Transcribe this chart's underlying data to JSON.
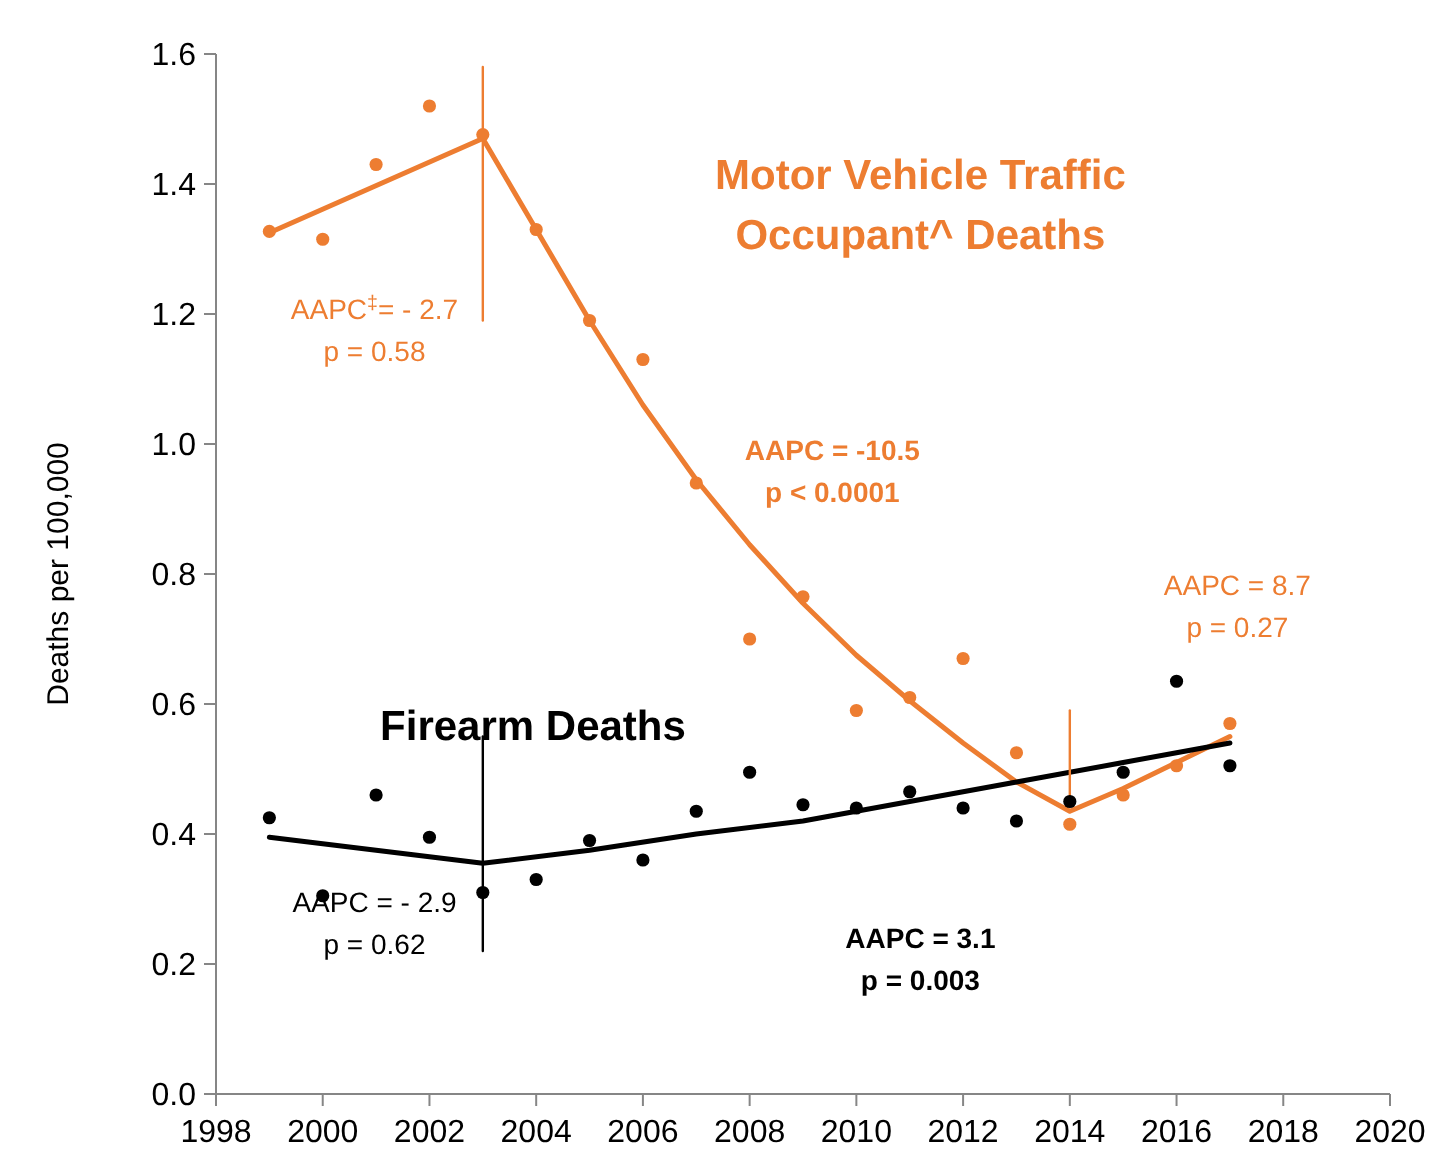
{
  "chart_data": {
    "type": "scatter",
    "ylabel": "Deaths per 100,000",
    "xlim": [
      1998,
      2020
    ],
    "xticks": [
      1998,
      2000,
      2002,
      2004,
      2006,
      2008,
      2010,
      2012,
      2014,
      2016,
      2018,
      2020
    ],
    "ylim": [
      0,
      1.6
    ],
    "yticks": [
      {
        "value": 0,
        "label": "0.0"
      },
      0.2,
      0.4,
      0.6,
      0.8,
      {
        "value": 1,
        "label": "1.0"
      },
      1.2,
      1.4,
      1.6
    ],
    "grid": false,
    "marker": "circle",
    "series": [
      {
        "name": "Motor Vehicle Traffic Occupant^ Deaths",
        "color": "#ed7d31",
        "x": [
          1999,
          2000,
          2001,
          2002,
          2003,
          2004,
          2005,
          2006,
          2007,
          2008,
          2009,
          2010,
          2011,
          2012,
          2013,
          2014,
          2015,
          2016,
          2017
        ],
        "values": [
          1.327,
          1.315,
          1.43,
          1.52,
          1.476,
          1.33,
          1.19,
          1.13,
          0.94,
          0.7,
          0.765,
          0.59,
          0.61,
          0.67,
          0.525,
          0.415,
          0.46,
          0.505,
          0.57
        ]
      },
      {
        "name": "Firearm Deaths",
        "color": "#000000",
        "x": [
          1999,
          2000,
          2001,
          2002,
          2003,
          2004,
          2005,
          2006,
          2007,
          2008,
          2009,
          2010,
          2011,
          2012,
          2013,
          2014,
          2015,
          2016,
          2017
        ],
        "values": [
          0.425,
          0.305,
          0.46,
          0.395,
          0.31,
          0.33,
          0.39,
          0.36,
          0.435,
          0.495,
          0.445,
          0.44,
          0.465,
          0.44,
          0.42,
          0.45,
          0.495,
          0.635,
          0.505
        ]
      },
      {
        "type": "line",
        "color": "#ed7d31",
        "marker": "none",
        "x": [
          1999,
          2003,
          2004,
          2005,
          2006,
          2007,
          2008,
          2009,
          2010,
          2011,
          2012,
          2013,
          2014,
          2015,
          2016,
          2017
        ],
        "values": [
          1.325,
          1.47,
          1.33,
          1.19,
          1.06,
          0.945,
          0.845,
          0.755,
          0.675,
          0.605,
          0.54,
          0.48,
          0.435,
          0.47,
          0.51,
          0.55
        ]
      },
      {
        "type": "line",
        "color": "#000000",
        "marker": "none",
        "x": [
          1999,
          2003,
          2005,
          2007,
          2009,
          2011,
          2013,
          2015,
          2017
        ],
        "values": [
          0.395,
          0.355,
          0.375,
          0.4,
          0.42,
          0.45,
          0.48,
          0.51,
          0.54
        ]
      },
      {
        "type": "line",
        "color": "#ed7d31",
        "marker": "none",
        "x": [
          2003,
          2003
        ],
        "values": [
          1.58,
          1.19
        ]
      },
      {
        "type": "line",
        "color": "#000000",
        "marker": "none",
        "x": [
          2003,
          2003
        ],
        "values": [
          0.55,
          0.22
        ]
      },
      {
        "type": "line",
        "color": "#ed7d31",
        "marker": "none",
        "x": [
          2014,
          2014
        ],
        "values": [
          0.59,
          0.45
        ]
      }
    ],
    "annotations": [
      "AAPC$^{‡}$= - 2.7\np = 0.58",
      "AAPC = -10.5\np < 0.0001",
      "AAPC = 8.7\np = 0.27",
      "AAPC = - 2.9\np = 0.62",
      "AAPC = 3.1\np = 0.003"
    ]
  }
}
